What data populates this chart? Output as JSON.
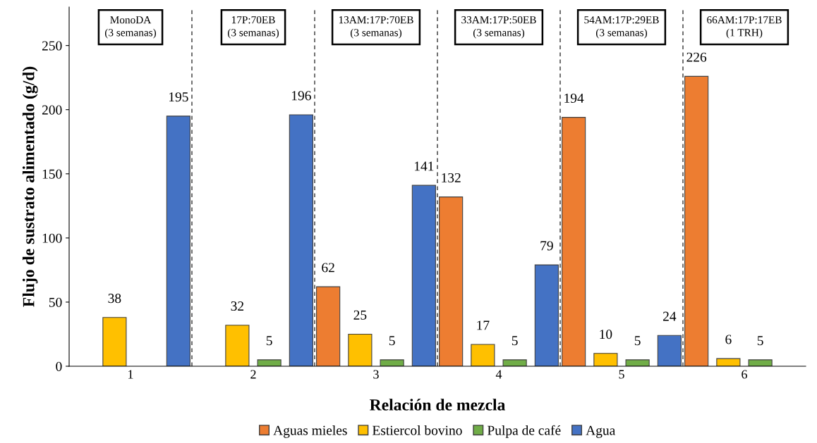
{
  "chart_data": {
    "type": "bar",
    "xlabel": "Relación de mezcla",
    "ylabel": "Flujo de sustrato alimentado (g/d)",
    "categories": [
      "1",
      "2",
      "3",
      "4",
      "5",
      "6"
    ],
    "series": [
      {
        "name": "Aguas mieles",
        "color": "#ed7d31",
        "values": [
          null,
          null,
          62,
          132,
          194,
          226
        ]
      },
      {
        "name": "Estiercol bovino",
        "color": "#ffc000",
        "values": [
          38,
          32,
          25,
          17,
          10,
          6
        ]
      },
      {
        "name": "Pulpa de café",
        "color": "#70ad47",
        "values": [
          null,
          5,
          5,
          5,
          5,
          5
        ]
      },
      {
        "name": "Agua",
        "color": "#4472c4",
        "values": [
          195,
          196,
          141,
          79,
          24,
          null
        ]
      }
    ],
    "ylim": [
      0,
      280
    ],
    "yticks": [
      0,
      50,
      100,
      150,
      200,
      250
    ],
    "data_labels": true,
    "legend": "bottom",
    "grid": false,
    "annotations": [
      "MonoDA\n(3 semanas)",
      "17P:70EB\n(3 semanas)",
      "13AM:17P:70EB\n(3 semanas)",
      "33AM:17P:50EB\n(3 semanas)",
      "54AM:17P:29EB\n(3 semanas)",
      "66AM:17P:17EB\n(1 TRH)"
    ]
  }
}
